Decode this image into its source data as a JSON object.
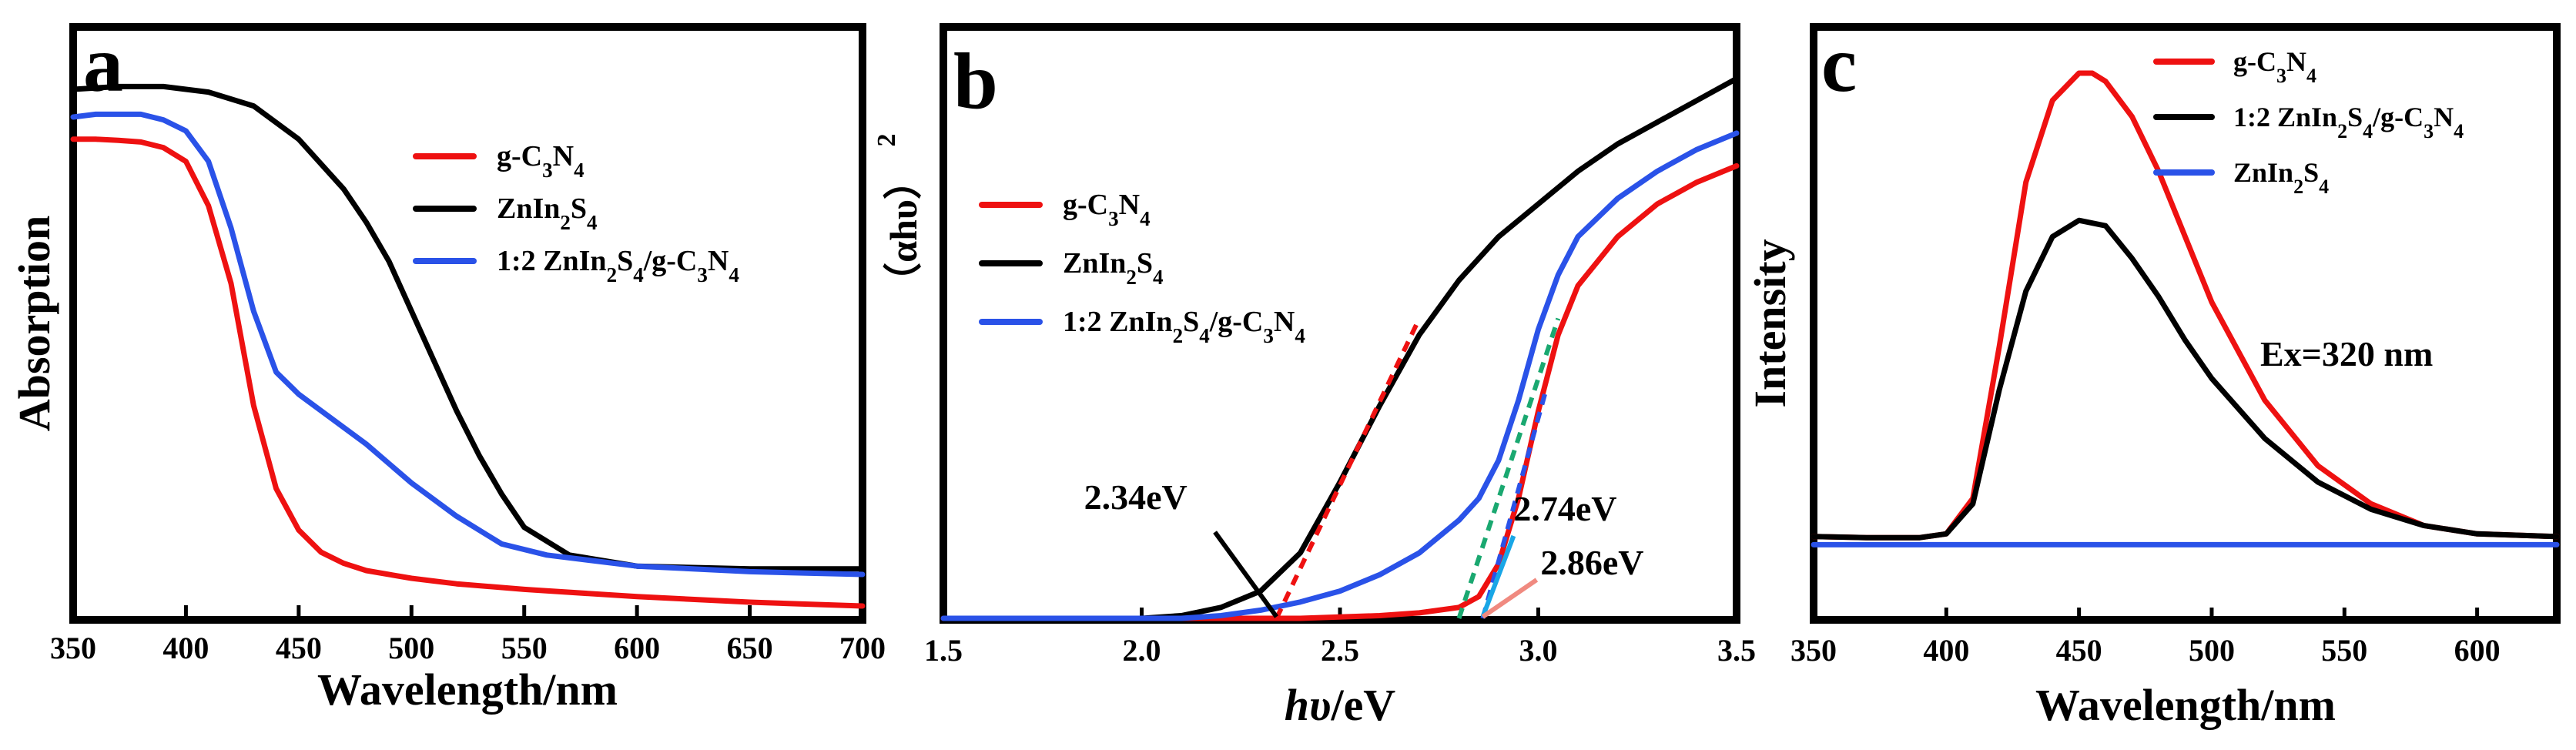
{
  "colors": {
    "red": "#ee1111",
    "black": "#000000",
    "blue": "#2a52e8",
    "green": "#1aa870",
    "cyan": "#19a6e6",
    "salmon": "#f08a80"
  },
  "chart_data": [
    {
      "panel": "a",
      "type": "line",
      "xlabel": "Wavelength/nm",
      "ylabel": "Absorption",
      "xlim": [
        350,
        700
      ],
      "ylim": [
        0,
        1
      ],
      "xticks": [
        "350",
        "400",
        "450",
        "500",
        "550",
        "600",
        "650",
        "700"
      ],
      "legend_position": "top-right",
      "legend": [
        {
          "name": "g-C3N4",
          "color": "red",
          "segments": [
            [
              "g-C",
              ""
            ],
            [
              "3",
              "sub"
            ],
            [
              "N",
              ""
            ],
            [
              "4",
              "sub"
            ]
          ]
        },
        {
          "name": "ZnIn2S4",
          "color": "black",
          "segments": [
            [
              "ZnIn",
              ""
            ],
            [
              "2",
              "sub"
            ],
            [
              "S",
              ""
            ],
            [
              "4",
              "sub"
            ]
          ]
        },
        {
          "name": "1:2 ZnIn2S4/g-C3N4",
          "color": "blue",
          "segments": [
            [
              "1:2 ZnIn",
              ""
            ],
            [
              "2",
              "sub"
            ],
            [
              "S",
              ""
            ],
            [
              "4",
              "sub"
            ],
            [
              "/g-C",
              ""
            ],
            [
              "3",
              "sub"
            ],
            [
              "N",
              ""
            ],
            [
              "4",
              "sub"
            ]
          ]
        }
      ],
      "series": [
        {
          "name": "g-C3N4",
          "color": "red",
          "x": [
            350,
            360,
            370,
            380,
            390,
            400,
            410,
            420,
            430,
            440,
            450,
            460,
            470,
            480,
            500,
            520,
            550,
            600,
            650,
            700
          ],
          "y": [
            0.86,
            0.86,
            0.858,
            0.855,
            0.845,
            0.82,
            0.74,
            0.6,
            0.38,
            0.23,
            0.155,
            0.115,
            0.095,
            0.082,
            0.068,
            0.058,
            0.048,
            0.035,
            0.025,
            0.018
          ]
        },
        {
          "name": "ZnIn2S4",
          "color": "black",
          "x": [
            350,
            370,
            390,
            410,
            430,
            450,
            470,
            480,
            490,
            500,
            510,
            520,
            530,
            540,
            550,
            570,
            600,
            650,
            700
          ],
          "y": [
            0.95,
            0.955,
            0.955,
            0.945,
            0.92,
            0.86,
            0.77,
            0.71,
            0.64,
            0.55,
            0.46,
            0.37,
            0.29,
            0.22,
            0.16,
            0.11,
            0.09,
            0.085,
            0.085
          ]
        },
        {
          "name": "1:2 ZnIn2S4/g-C3N4",
          "color": "blue",
          "x": [
            350,
            360,
            380,
            390,
            400,
            410,
            420,
            430,
            440,
            450,
            460,
            470,
            480,
            500,
            520,
            540,
            560,
            600,
            650,
            700
          ],
          "y": [
            0.9,
            0.905,
            0.905,
            0.895,
            0.875,
            0.82,
            0.7,
            0.55,
            0.44,
            0.4,
            0.37,
            0.34,
            0.31,
            0.24,
            0.18,
            0.13,
            0.11,
            0.09,
            0.08,
            0.075
          ]
        }
      ]
    },
    {
      "panel": "b",
      "type": "line",
      "xlabel": "hυ/eV",
      "xlabel_italic": "hυ",
      "xlabel_rest": "/eV",
      "ylabel": "（αhυ）2",
      "ylabel_main": "（αhυ）",
      "ylabel_sup": "2",
      "xlim": [
        1.5,
        3.5
      ],
      "ylim": [
        0,
        1
      ],
      "xticks": [
        "1.5",
        "2.0",
        "2.5",
        "3.0",
        "3.5"
      ],
      "legend_position": "top-left",
      "legend": [
        {
          "name": "g-C3N4",
          "color": "red",
          "segments": [
            [
              "g-C",
              ""
            ],
            [
              "3",
              "sub"
            ],
            [
              "N",
              ""
            ],
            [
              "4",
              "sub"
            ]
          ]
        },
        {
          "name": "ZnIn2S4",
          "color": "black",
          "segments": [
            [
              "ZnIn",
              ""
            ],
            [
              "2",
              "sub"
            ],
            [
              "S",
              ""
            ],
            [
              "4",
              "sub"
            ]
          ]
        },
        {
          "name": "1:2 ZnIn2S4/g-C3N4",
          "color": "blue",
          "segments": [
            [
              "1:2 ZnIn",
              ""
            ],
            [
              "2",
              "sub"
            ],
            [
              "S",
              ""
            ],
            [
              "4",
              "sub"
            ],
            [
              "/g-C",
              ""
            ],
            [
              "3",
              "sub"
            ],
            [
              "N",
              ""
            ],
            [
              "4",
              "sub"
            ]
          ]
        }
      ],
      "series": [
        {
          "name": "ZnIn2S4",
          "color": "black",
          "x": [
            1.5,
            2.0,
            2.1,
            2.2,
            2.3,
            2.4,
            2.5,
            2.6,
            2.7,
            2.8,
            2.9,
            3.0,
            3.1,
            3.2,
            3.3,
            3.4,
            3.5
          ],
          "y": [
            0.0,
            0.0,
            0.005,
            0.02,
            0.05,
            0.12,
            0.25,
            0.39,
            0.52,
            0.62,
            0.7,
            0.76,
            0.82,
            0.87,
            0.91,
            0.95,
            0.99
          ]
        },
        {
          "name": "g-C3N4",
          "color": "red",
          "x": [
            1.5,
            2.4,
            2.6,
            2.7,
            2.8,
            2.85,
            2.9,
            2.95,
            3.0,
            3.05,
            3.1,
            3.2,
            3.3,
            3.4,
            3.5
          ],
          "y": [
            0.0,
            0.0,
            0.005,
            0.01,
            0.02,
            0.04,
            0.1,
            0.22,
            0.38,
            0.52,
            0.61,
            0.7,
            0.76,
            0.8,
            0.83
          ]
        },
        {
          "name": "1:2 ZnIn2S4/g-C3N4",
          "color": "blue",
          "x": [
            1.5,
            2.1,
            2.2,
            2.3,
            2.4,
            2.5,
            2.6,
            2.7,
            2.8,
            2.85,
            2.9,
            2.95,
            3.0,
            3.05,
            3.1,
            3.2,
            3.3,
            3.4,
            3.5
          ],
          "y": [
            0.0,
            0.0,
            0.005,
            0.015,
            0.03,
            0.05,
            0.08,
            0.12,
            0.18,
            0.22,
            0.29,
            0.4,
            0.53,
            0.63,
            0.7,
            0.77,
            0.82,
            0.86,
            0.89
          ]
        }
      ],
      "tangents": [
        {
          "name": "ZnIn2S4 tangent",
          "color": "red",
          "x": [
            2.34,
            2.7
          ],
          "y": [
            0.0,
            0.55
          ]
        },
        {
          "name": "1:2 tangent",
          "color": "green",
          "x": [
            2.8,
            3.05
          ],
          "y": [
            0.0,
            0.55
          ]
        },
        {
          "name": "g-C3N4 tangent",
          "color": "blue",
          "x": [
            2.86,
            3.02
          ],
          "y": [
            0.0,
            0.42
          ]
        }
      ],
      "annotations": [
        {
          "label": "2.34eV",
          "x": 2.34,
          "color": "black",
          "text_pos": "upper-left"
        },
        {
          "label": "2.74eV",
          "x": 2.86,
          "color": "cyan",
          "text_pos": "upper-right"
        },
        {
          "label": "2.86eV",
          "x": 2.86,
          "color": "salmon",
          "text_pos": "right"
        }
      ]
    },
    {
      "panel": "c",
      "type": "line",
      "xlabel": "Wavelength/nm",
      "ylabel": "Intensity",
      "xlim": [
        350,
        630
      ],
      "ylim": [
        0,
        1
      ],
      "xticks": [
        "350",
        "400",
        "450",
        "500",
        "550",
        "600"
      ],
      "legend_position": "top-right",
      "annotation_text": "Ex=320 nm",
      "legend": [
        {
          "name": "g-C3N4",
          "color": "red",
          "segments": [
            [
              "g-C",
              ""
            ],
            [
              "3",
              "sub"
            ],
            [
              "N",
              ""
            ],
            [
              "4",
              "sub"
            ]
          ]
        },
        {
          "name": "1:2 ZnIn2S4/g-C3N4",
          "color": "black",
          "segments": [
            [
              "1:2 ZnIn",
              ""
            ],
            [
              "2",
              "sub"
            ],
            [
              "S",
              ""
            ],
            [
              "4",
              "sub"
            ],
            [
              "/g-C",
              ""
            ],
            [
              "3",
              "sub"
            ],
            [
              "N",
              ""
            ],
            [
              "4",
              "sub"
            ]
          ]
        },
        {
          "name": "ZnIn2S4",
          "color": "blue",
          "segments": [
            [
              "ZnIn",
              ""
            ],
            [
              "2",
              "sub"
            ],
            [
              "S",
              ""
            ],
            [
              "4",
              "sub"
            ]
          ]
        }
      ],
      "series": [
        {
          "name": "g-C3N4",
          "color": "red",
          "x": [
            350,
            370,
            390,
            400,
            410,
            420,
            430,
            440,
            450,
            455,
            460,
            470,
            480,
            490,
            500,
            520,
            540,
            560,
            580,
            600,
            630
          ],
          "y": [
            0.15,
            0.148,
            0.148,
            0.155,
            0.22,
            0.5,
            0.8,
            0.95,
            1.0,
            1.0,
            0.985,
            0.92,
            0.82,
            0.7,
            0.58,
            0.4,
            0.28,
            0.21,
            0.17,
            0.155,
            0.15
          ]
        },
        {
          "name": "1:2 ZnIn2S4/g-C3N4",
          "color": "black",
          "x": [
            350,
            370,
            390,
            400,
            410,
            420,
            430,
            440,
            450,
            460,
            470,
            480,
            490,
            500,
            520,
            540,
            560,
            580,
            600,
            630
          ],
          "y": [
            0.15,
            0.148,
            0.148,
            0.155,
            0.21,
            0.42,
            0.6,
            0.7,
            0.73,
            0.72,
            0.66,
            0.59,
            0.51,
            0.44,
            0.33,
            0.25,
            0.2,
            0.17,
            0.155,
            0.15
          ]
        },
        {
          "name": "ZnIn2S4",
          "color": "blue",
          "x": [
            350,
            630
          ],
          "y": [
            0.135,
            0.135
          ]
        }
      ]
    }
  ]
}
